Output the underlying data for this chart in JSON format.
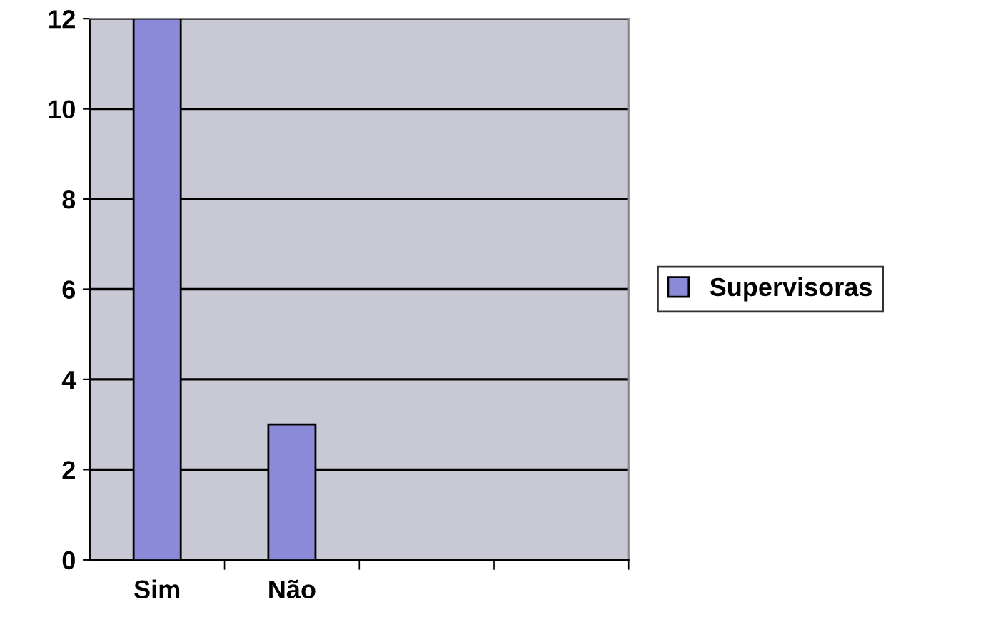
{
  "chart_data": {
    "type": "bar",
    "categories": [
      "Sim",
      "Não",
      null,
      null
    ],
    "series": [
      {
        "name": "Supervisoras",
        "color": "#8a8ad8",
        "values": [
          12,
          3,
          null,
          null
        ]
      }
    ],
    "ylim": [
      0,
      12
    ],
    "yticks": [
      0,
      2,
      4,
      6,
      8,
      10,
      12
    ],
    "grid": "y",
    "legend": "right"
  }
}
